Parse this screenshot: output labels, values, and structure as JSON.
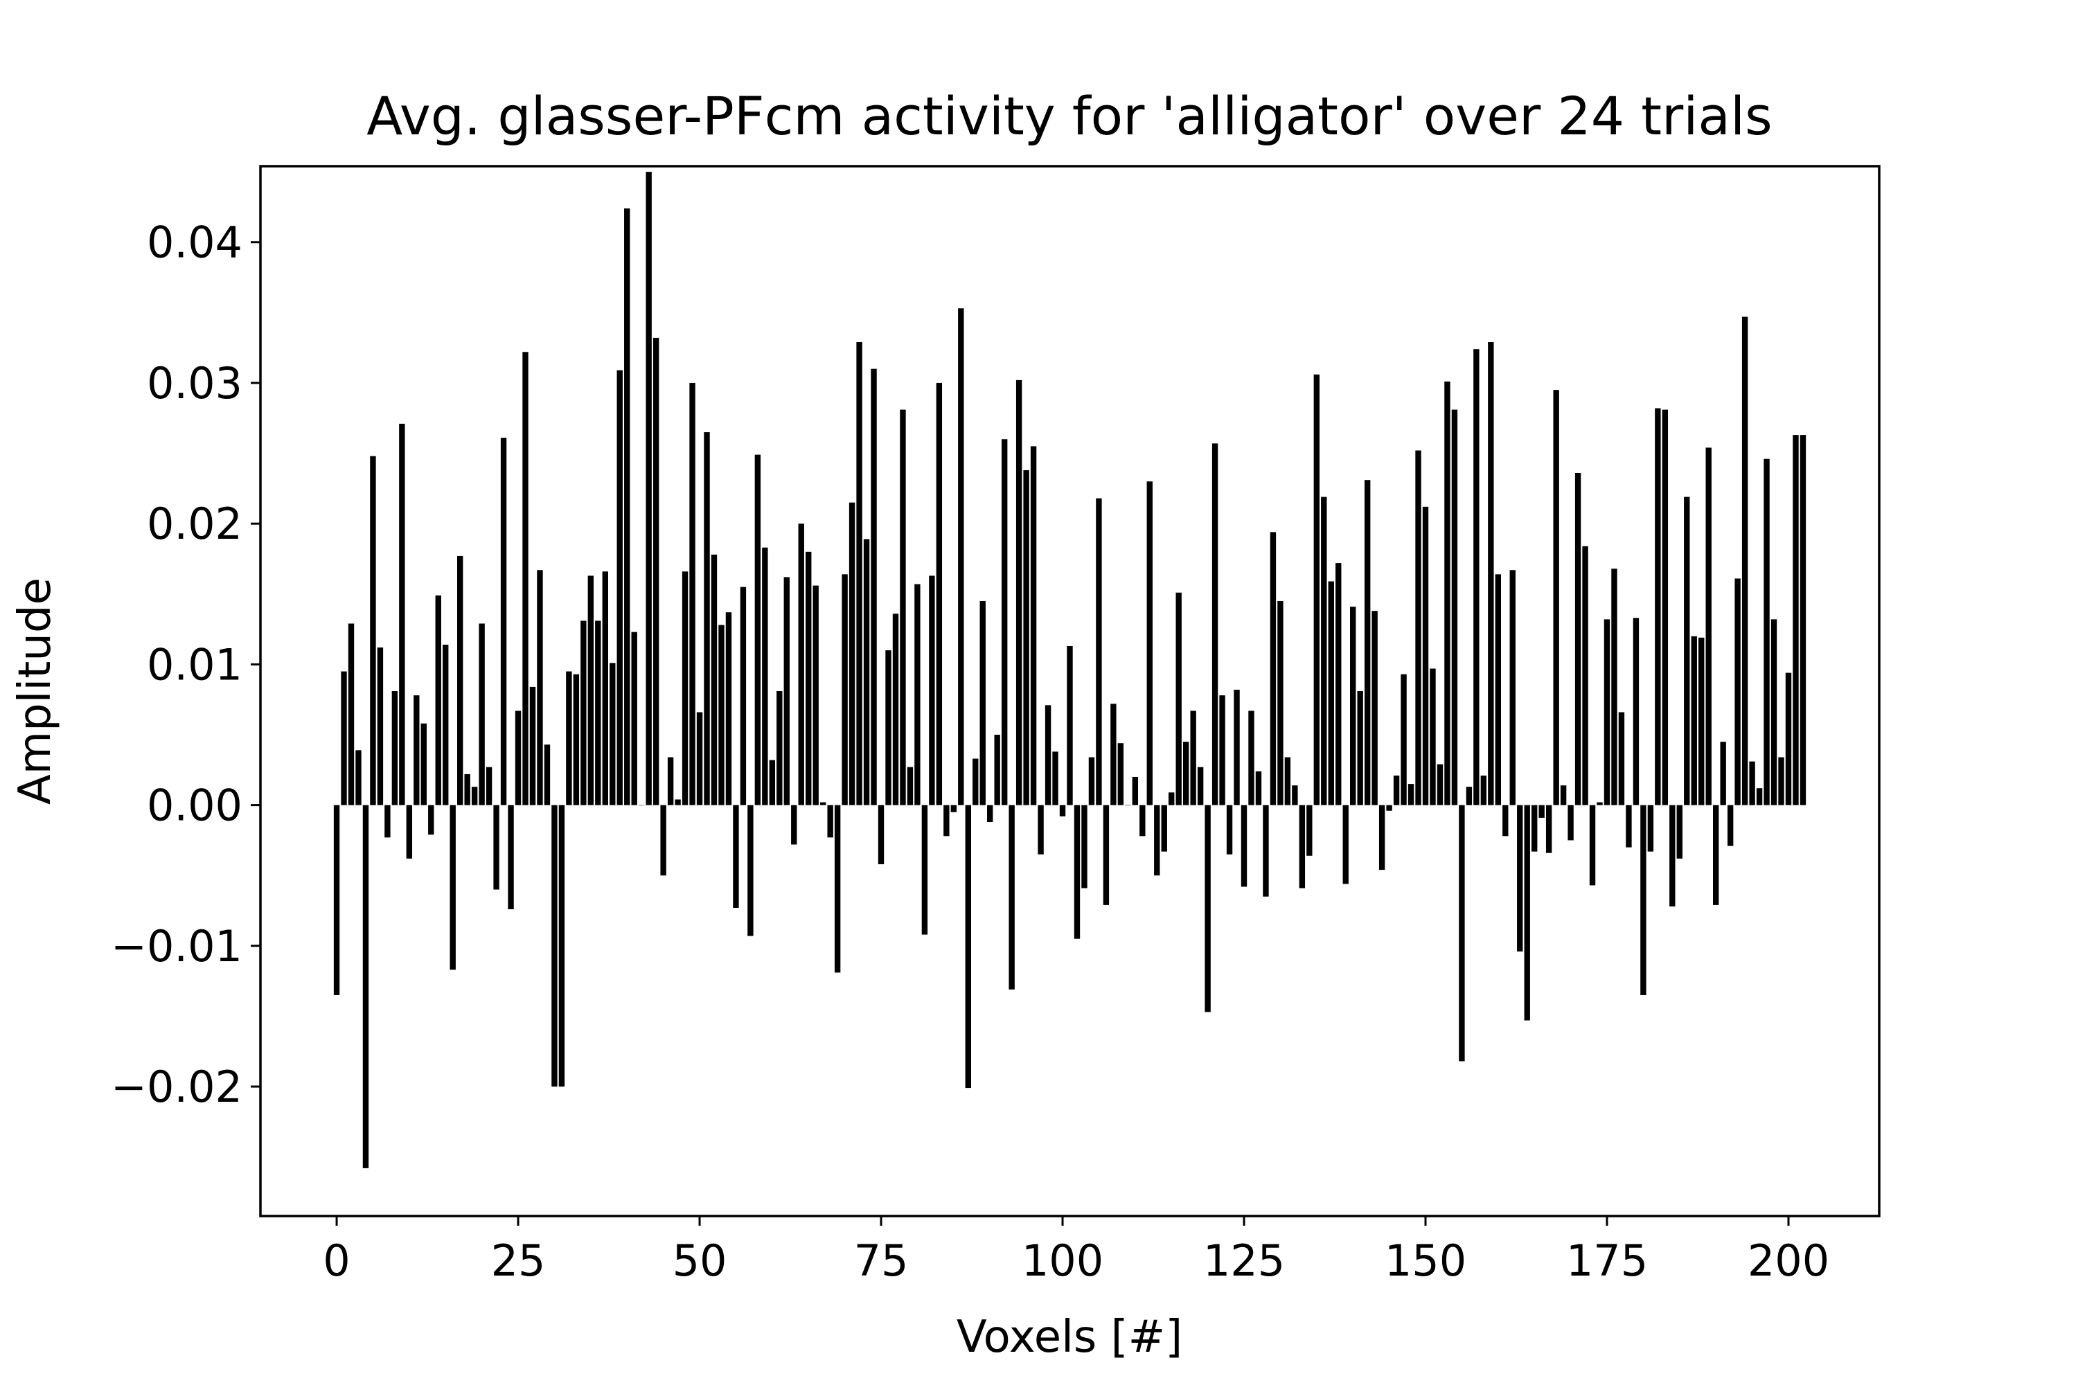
{
  "chart_data": {
    "type": "bar",
    "title": "Avg. glasser-PFcm activity for 'alligator' over 24 trials",
    "xlabel": "Voxels [#]",
    "ylabel": "Amplitude",
    "xlim": [
      -10.5,
      212.5
    ],
    "ylim": [
      -0.0292,
      0.0454
    ],
    "xticks": [
      0,
      25,
      50,
      75,
      100,
      125,
      150,
      175,
      200
    ],
    "xtick_labels": [
      "0",
      "25",
      "50",
      "75",
      "100",
      "125",
      "150",
      "175",
      "200"
    ],
    "yticks": [
      -0.02,
      -0.01,
      0.0,
      0.01,
      0.02,
      0.03,
      0.04
    ],
    "ytick_labels": [
      "−0.02",
      "−0.01",
      "0.00",
      "0.01",
      "0.02",
      "0.03",
      "0.04"
    ],
    "grid": false,
    "bar_color": "#000000",
    "x": [
      0,
      1,
      2,
      3,
      4,
      5,
      6,
      7,
      8,
      9,
      10,
      11,
      12,
      13,
      14,
      15,
      16,
      17,
      18,
      19,
      20,
      21,
      22,
      23,
      24,
      25,
      26,
      27,
      28,
      29,
      30,
      31,
      32,
      33,
      34,
      35,
      36,
      37,
      38,
      39,
      40,
      41,
      42,
      43,
      44,
      45,
      46,
      47,
      48,
      49,
      50,
      51,
      52,
      53,
      54,
      55,
      56,
      57,
      58,
      59,
      60,
      61,
      62,
      63,
      64,
      65,
      66,
      67,
      68,
      69,
      70,
      71,
      72,
      73,
      74,
      75,
      76,
      77,
      78,
      79,
      80,
      81,
      82,
      83,
      84,
      85,
      86,
      87,
      88,
      89,
      90,
      91,
      92,
      93,
      94,
      95,
      96,
      97,
      98,
      99,
      100,
      101,
      102,
      103,
      104,
      105,
      106,
      107,
      108,
      109,
      110,
      111,
      112,
      113,
      114,
      115,
      116,
      117,
      118,
      119,
      120,
      121,
      122,
      123,
      124,
      125,
      126,
      127,
      128,
      129,
      130,
      131,
      132,
      133,
      134,
      135,
      136,
      137,
      138,
      139,
      140,
      141,
      142,
      143,
      144,
      145,
      146,
      147,
      148,
      149,
      150,
      151,
      152,
      153,
      154,
      155,
      156,
      157,
      158,
      159,
      160,
      161,
      162,
      163,
      164,
      165,
      166,
      167,
      168,
      169,
      170,
      171,
      172,
      173,
      174,
      175,
      176,
      177,
      178,
      179,
      180,
      181,
      182,
      183,
      184,
      185,
      186,
      187,
      188,
      189,
      190,
      191,
      192,
      193,
      194,
      195,
      196,
      197,
      198,
      199,
      200,
      201,
      202
    ],
    "values": [
      -0.0135,
      0.0095,
      0.0129,
      0.0039,
      -0.0258,
      0.0248,
      0.0112,
      -0.0023,
      0.0081,
      0.0271,
      -0.0038,
      0.0078,
      0.0058,
      -0.0021,
      0.0149,
      0.0114,
      -0.0117,
      0.0177,
      0.0022,
      0.0013,
      0.0129,
      0.0027,
      -0.006,
      0.0261,
      -0.0074,
      0.0067,
      0.0322,
      0.0084,
      0.0167,
      0.0043,
      -0.02,
      -0.02,
      0.0095,
      0.0093,
      0.0131,
      0.0163,
      0.0131,
      0.0166,
      0.0101,
      0.0309,
      0.0424,
      0.0123,
      0.0,
      0.045,
      0.0332,
      -0.005,
      0.0034,
      0.0004,
      0.0166,
      0.03,
      0.0066,
      0.0265,
      0.0178,
      0.0128,
      0.0137,
      -0.0073,
      0.0155,
      -0.0093,
      0.0249,
      0.0183,
      0.0032,
      0.0081,
      0.0162,
      -0.0028,
      0.02,
      0.018,
      0.0156,
      0.0002,
      -0.0023,
      -0.0119,
      0.0164,
      0.0215,
      0.0329,
      0.0189,
      0.031,
      -0.0042,
      0.011,
      0.0136,
      0.0281,
      0.0027,
      0.0157,
      -0.0092,
      0.0163,
      0.03,
      -0.0022,
      -0.0005,
      0.0353,
      -0.0201,
      0.0033,
      0.0145,
      -0.0012,
      0.005,
      0.026,
      -0.0131,
      0.0302,
      0.0238,
      0.0255,
      -0.0035,
      0.0071,
      0.0038,
      -0.0008,
      0.0113,
      -0.0095,
      -0.0059,
      0.0034,
      0.0218,
      -0.0071,
      0.0072,
      0.0044,
      0.0,
      0.002,
      -0.0022,
      0.023,
      -0.005,
      -0.0033,
      0.0009,
      0.0151,
      0.0045,
      0.0067,
      0.0027,
      -0.0147,
      0.0257,
      0.0078,
      -0.0035,
      0.0082,
      -0.0058,
      0.0067,
      0.0024,
      -0.0065,
      0.0194,
      0.0145,
      0.0034,
      0.0014,
      -0.0059,
      -0.0036,
      0.0306,
      0.0219,
      0.0159,
      0.0172,
      -0.0056,
      0.0141,
      0.0081,
      0.0231,
      0.0138,
      -0.0046,
      -0.0004,
      0.0021,
      0.0093,
      0.0015,
      0.0252,
      0.0212,
      0.0097,
      0.0029,
      0.0301,
      0.0281,
      -0.0182,
      0.0013,
      0.0324,
      0.0021,
      0.0329,
      0.0164,
      -0.0022,
      0.0167,
      -0.0104,
      -0.0153,
      -0.0033,
      -0.0009,
      -0.0034,
      0.0295,
      0.0014,
      -0.0025,
      0.0236,
      0.0184,
      -0.0057,
      0.0002,
      0.0132,
      0.0168,
      0.0066,
      -0.003,
      0.0133,
      -0.0135,
      -0.0033,
      0.0282,
      0.0281,
      -0.0072,
      -0.0038,
      0.0219,
      0.012,
      0.0119,
      0.0254,
      -0.0071,
      0.0045,
      -0.0029,
      0.0161,
      0.0347,
      0.0031,
      0.0012,
      0.0246,
      0.0132,
      0.0034,
      0.0094,
      0.0263,
      0.0263
    ]
  }
}
